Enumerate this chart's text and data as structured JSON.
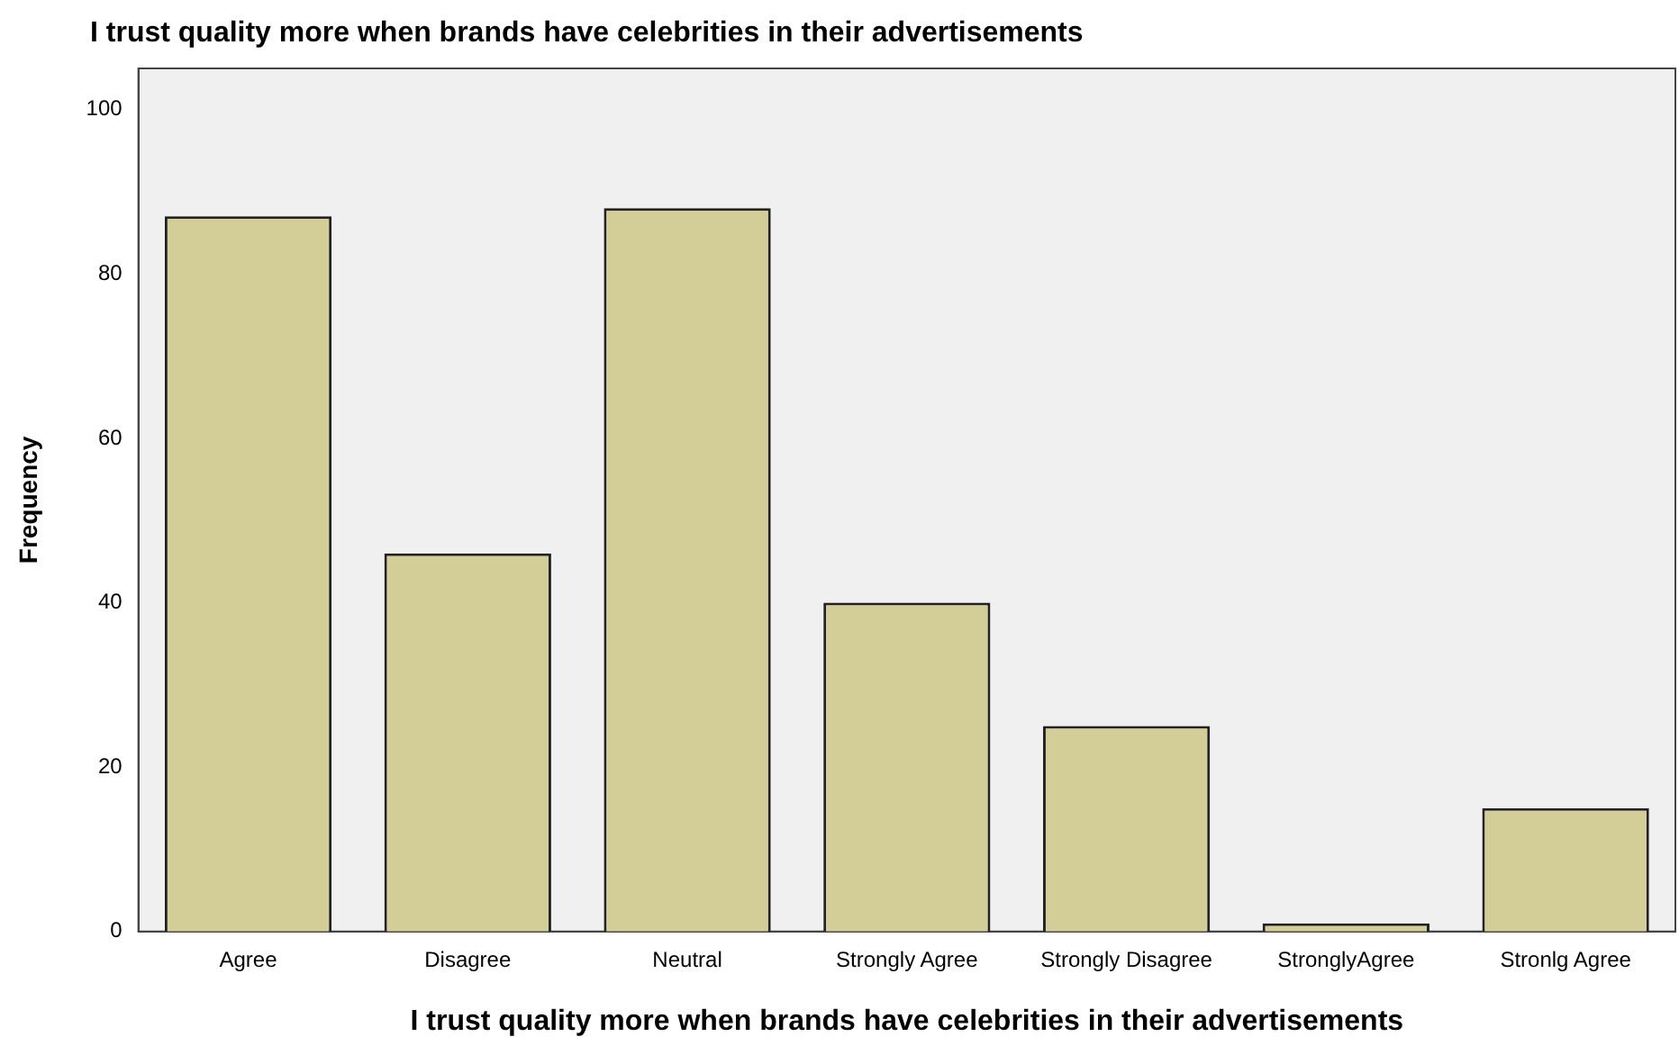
{
  "chart_data": {
    "type": "bar",
    "title": "I trust quality more when brands have celebrities in their advertisements",
    "xlabel": "I trust quality more when brands have celebrities in their advertisements",
    "ylabel": "Frequency",
    "categories": [
      "Agree",
      "Disagree",
      "Neutral",
      "Strongly Agree",
      "Strongly Disagree",
      "StronglyAgree",
      "Stronlg Agree"
    ],
    "values": [
      87,
      46,
      88,
      40,
      25,
      1,
      15
    ],
    "color": "#d3cd98",
    "ylim": [
      0,
      105
    ],
    "yticks": [
      0,
      20,
      40,
      60,
      80,
      100
    ],
    "grid": false,
    "legend": false
  }
}
